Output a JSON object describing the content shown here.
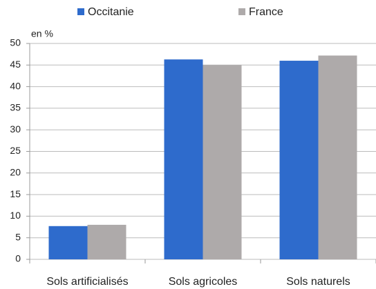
{
  "chart_data": {
    "type": "bar",
    "y_label": "en %",
    "categories": [
      "Sols artificialisés",
      "Sols agricoles",
      "Sols naturels"
    ],
    "series": [
      {
        "name": "Occitanie",
        "color": "#2e6bcc",
        "values": [
          7.7,
          46.3,
          46.0
        ]
      },
      {
        "name": "France",
        "color": "#aeaaaa",
        "values": [
          8.0,
          45.0,
          47.2
        ]
      }
    ],
    "ylim": [
      0,
      50
    ],
    "yticks": [
      0,
      5,
      10,
      15,
      20,
      25,
      30,
      35,
      40,
      45,
      50
    ],
    "grid": true,
    "legend": "top"
  }
}
